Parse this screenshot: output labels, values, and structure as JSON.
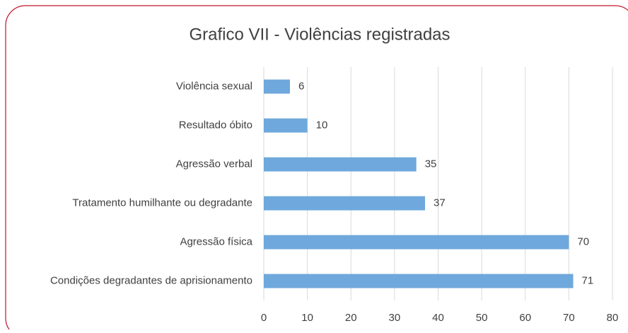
{
  "chart_data": {
    "type": "bar",
    "orientation": "horizontal",
    "title": "Grafico VII - Violências registradas",
    "categories": [
      "Violência sexual",
      "Resultado óbito",
      "Agressão verbal",
      "Tratamento humilhante ou degradante",
      "Agressão física",
      "Condições degradantes de aprisionamento"
    ],
    "values": [
      6,
      10,
      35,
      37,
      70,
      71
    ],
    "color": "#6fa8dc",
    "xlim": [
      0,
      80
    ],
    "xticks": [
      0,
      10,
      20,
      30,
      40,
      50,
      60,
      70,
      80
    ],
    "grid": true
  }
}
